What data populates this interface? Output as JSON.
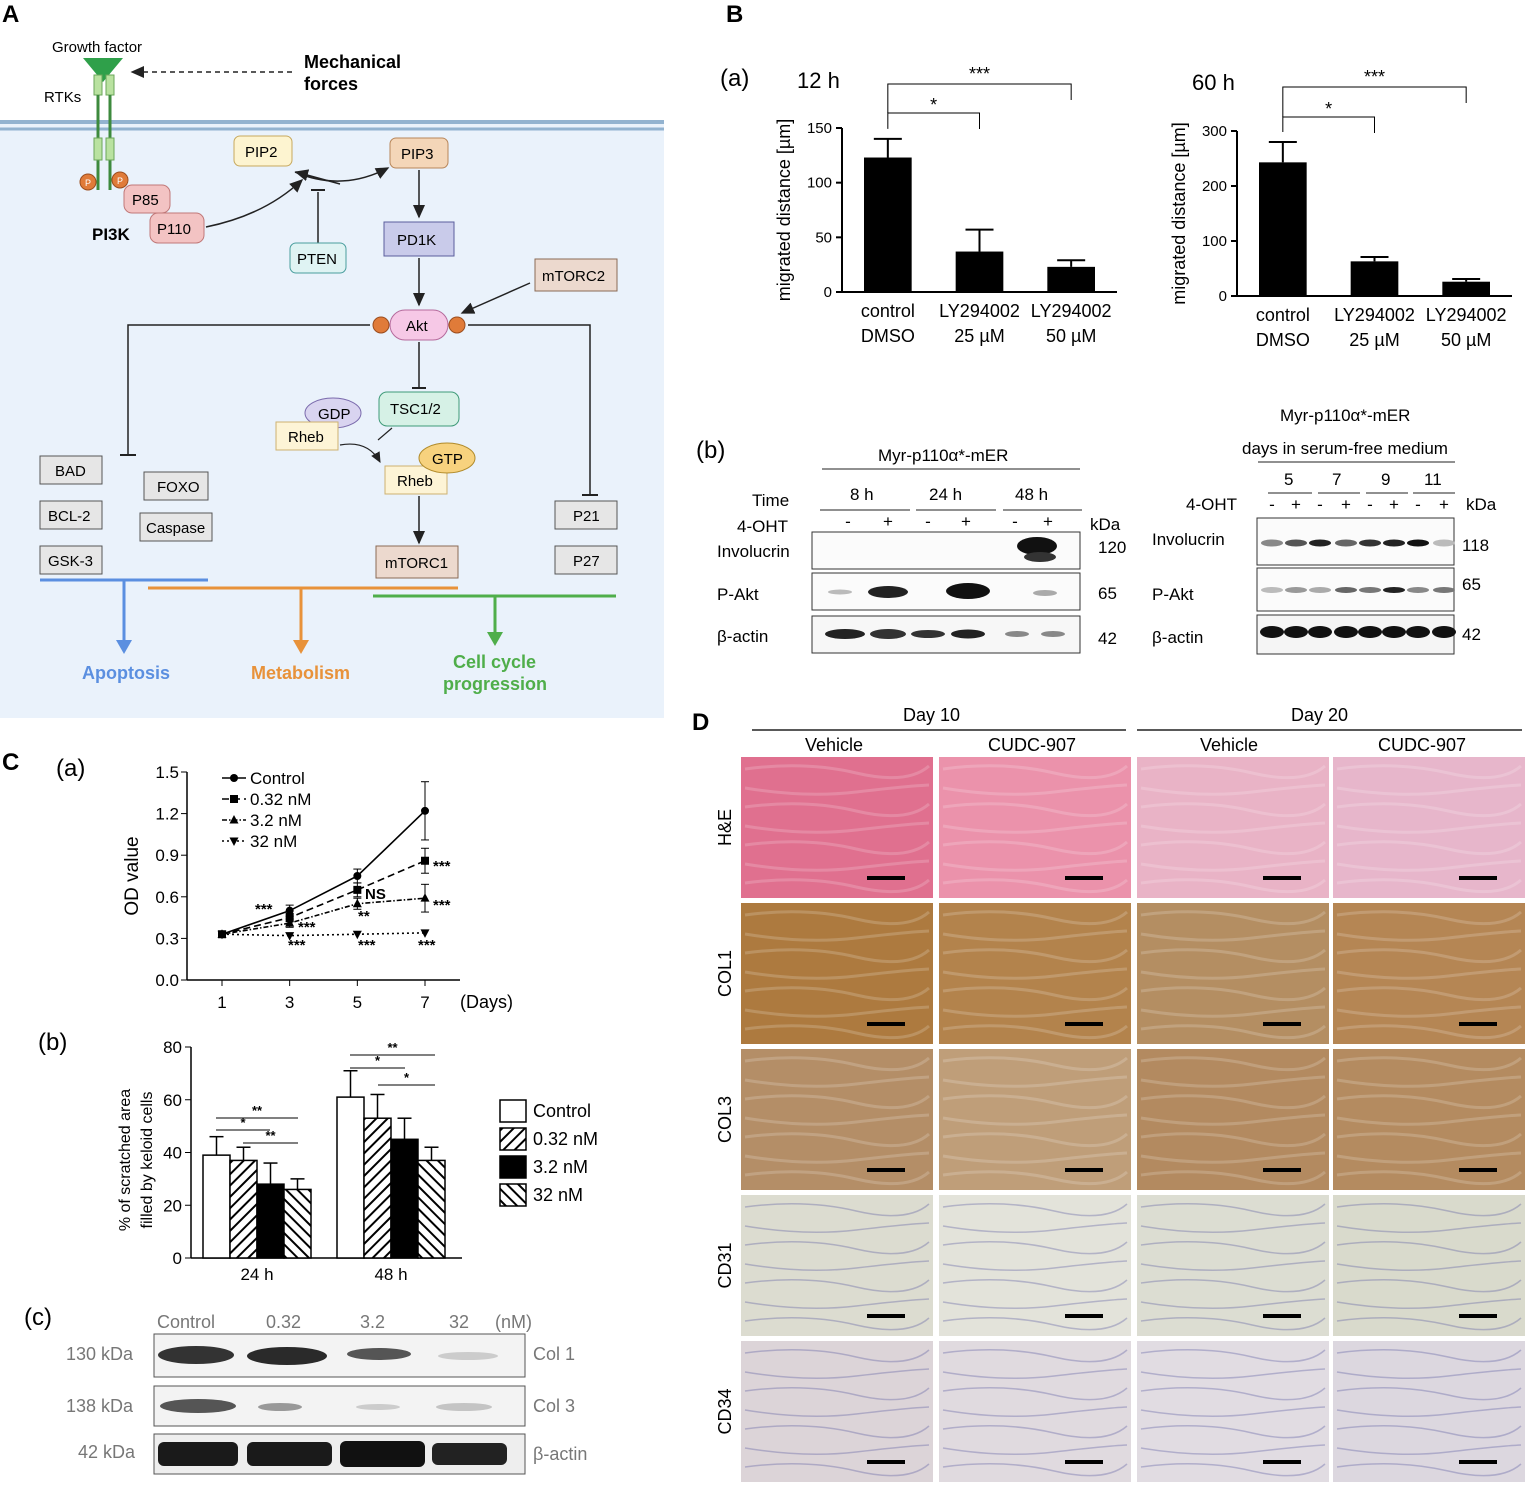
{
  "panels": {
    "A": {
      "letter": "A",
      "growth_factor": "Growth factor",
      "rtks": "RTKs",
      "mech1": "Mechanical",
      "mech2": "forces",
      "p": "P",
      "p85": "P85",
      "p110": "P110",
      "pi3k": "PI3K",
      "pip2": "PIP2",
      "pip3": "PIP3",
      "pten": "PTEN",
      "pd1k": "PD1K",
      "mtorc2": "mTORC2",
      "akt": "Akt",
      "tsc": "TSC1/2",
      "gdp": "GDP",
      "rheb": "Rheb",
      "gtp": "GTP",
      "mtorc1": "mTORC1",
      "bad": "BAD",
      "bcl2": "BCL-2",
      "gsk3": "GSK-3",
      "foxo": "FOXO",
      "caspase": "Caspase",
      "p21": "P21",
      "p27": "P27",
      "apoptosis": "Apoptosis",
      "metabolism": "Metabolism",
      "cc1": "Cell cycle",
      "cc2": "progression",
      "colors": {
        "apoptosis": "#5b8fe0",
        "metabolism": "#e8923a",
        "cellcycle": "#4fae4a"
      }
    },
    "B": {
      "letter": "B",
      "sub_a": "(a)",
      "sub_b": "(b)",
      "ylabel": "migrated distance [µm]",
      "cat1a": "control",
      "cat1b": "DMSO",
      "cat2a": "LY294002",
      "cat2b": "25 µM",
      "cat3a": "LY294002",
      "cat3b": "50 µM",
      "sig1": "*",
      "sig2": "***",
      "blot_left": {
        "construct": "Myr-p110α*-mER",
        "time_label": "Time",
        "times": [
          "8 h",
          "24 h",
          "48 h"
        ],
        "oht_label": "4-OHT",
        "kda_label": "kDa",
        "rows": [
          "Involucrin",
          "P-Akt",
          "β-actin"
        ],
        "kdas": [
          "120",
          "65",
          "42"
        ],
        "minus": "-",
        "plus": "+"
      },
      "blot_right": {
        "construct": "Myr-p110α*-mER",
        "days_label": "days in serum-free medium",
        "days": [
          "5",
          "7",
          "9",
          "11"
        ],
        "oht_label": "4-OHT",
        "kda_label": "kDa",
        "rows": [
          "Involucrin",
          "P-Akt",
          "β-actin"
        ],
        "kdas": [
          "118",
          "65",
          "42"
        ]
      }
    },
    "C": {
      "letter": "C",
      "sub_a": "(a)",
      "sub_b": "(b)",
      "sub_c": "(c)",
      "a_ylabel": "OD value",
      "a_xunit": "(Days)",
      "a_sig": {
        "s3": "***",
        "s3b": "***",
        "s3c": "***",
        "s5ns": "NS",
        "s5b": "**",
        "s5c": "***",
        "s7a": "***",
        "s7b": "***",
        "s7c": "***"
      },
      "b_ylabel1": "% of scratched area",
      "b_ylabel2": "filled by keloid cells",
      "b_groups": [
        "24 h",
        "48 h"
      ],
      "b_sig": {
        "s2": "**",
        "s1": "*",
        "s2b": "**"
      },
      "blot": {
        "labels": [
          "Control",
          "0.32",
          "3.2",
          "32",
          "(nM)"
        ],
        "kdas": [
          "130 kDa",
          "138 kDa",
          "42 kDa"
        ],
        "rows": [
          "Col 1",
          "Col 3",
          "β-actin"
        ]
      }
    },
    "D": {
      "letter": "D",
      "days": [
        "Day 10",
        "Day 20"
      ],
      "conditions": [
        "Vehicle",
        "CUDC-907",
        "Vehicle",
        "CUDC-907"
      ],
      "stains": [
        "H&E",
        "COL1",
        "COL3",
        "CD31",
        "CD34"
      ],
      "tile_colors": [
        [
          "#e0708f",
          "#eb92ab",
          "#e9b3c6",
          "#e7b6cb"
        ],
        [
          "#ad7a3f",
          "#b3834c",
          "#b48e62",
          "#b58654"
        ],
        [
          "#b48e67",
          "#bf9e79",
          "#b38a60",
          "#b48b60"
        ],
        [
          "#dcdcd0",
          "#e3e3da",
          "#dcddd2",
          "#d9dacc"
        ],
        [
          "#dcd4d8",
          "#e0dadf",
          "#e1dce2",
          "#dcd7df"
        ]
      ]
    }
  },
  "chart_data": [
    {
      "type": "bar",
      "title": "12 h",
      "ylabel": "migrated distance [µm]",
      "categories": [
        "control DMSO",
        "LY294002 25 µM",
        "LY294002 50 µM"
      ],
      "values": [
        123,
        37,
        23
      ],
      "errors": [
        17,
        20,
        6
      ],
      "ylim": [
        0,
        150
      ],
      "yticks": [
        0,
        50,
        100,
        150
      ]
    },
    {
      "type": "bar",
      "title": "60 h",
      "ylabel": "migrated distance [µm]",
      "categories": [
        "control DMSO",
        "LY294002 25 µM",
        "LY294002 50 µM"
      ],
      "values": [
        243,
        63,
        26
      ],
      "errors": [
        37,
        8,
        5
      ],
      "ylim": [
        0,
        300
      ],
      "yticks": [
        0,
        100,
        200,
        300
      ]
    },
    {
      "type": "line",
      "ylabel": "OD value",
      "xlabel": "(Days)",
      "x": [
        1,
        3,
        5,
        7
      ],
      "ylim": [
        0.0,
        1.5
      ],
      "yticks": [
        0.0,
        0.3,
        0.6,
        0.9,
        1.2,
        1.5
      ],
      "series": [
        {
          "name": "Control",
          "values": [
            0.33,
            0.5,
            0.75,
            1.22
          ],
          "errors": [
            0.02,
            0.04,
            0.05,
            0.21
          ],
          "dash": "",
          "marker": "circle"
        },
        {
          "name": "0.32 nM",
          "values": [
            0.33,
            0.45,
            0.65,
            0.86
          ],
          "errors": [
            0.02,
            0.03,
            0.05,
            0.09
          ],
          "dash": "7,4",
          "marker": "square"
        },
        {
          "name": "3.2 nM",
          "values": [
            0.33,
            0.41,
            0.55,
            0.59
          ],
          "errors": [
            0.02,
            0.03,
            0.04,
            0.1
          ],
          "dash": "5,2,1.5,2",
          "marker": "triangle"
        },
        {
          "name": "32 nM",
          "values": [
            0.33,
            0.32,
            0.33,
            0.34
          ],
          "errors": [
            0.01,
            0.01,
            0.01,
            0.01
          ],
          "dash": "2,3",
          "marker": "tridown"
        }
      ]
    },
    {
      "type": "bar",
      "ylabel": "% of scratched area filled by keloid cells",
      "categories": [
        "24 h",
        "48 h"
      ],
      "ylim": [
        0,
        80
      ],
      "yticks": [
        0,
        20,
        40,
        60,
        80
      ],
      "series": [
        {
          "name": "Control",
          "values": [
            39,
            61
          ],
          "errors": [
            7,
            10
          ],
          "fill": "white"
        },
        {
          "name": "0.32 nM",
          "values": [
            37,
            53
          ],
          "errors": [
            5,
            9
          ],
          "fill": "hatch1"
        },
        {
          "name": "3.2 nM",
          "values": [
            28,
            45
          ],
          "errors": [
            8,
            8
          ],
          "fill": "black"
        },
        {
          "name": "32 nM",
          "values": [
            26,
            37
          ],
          "errors": [
            4,
            5
          ],
          "fill": "hatch2"
        }
      ]
    }
  ]
}
